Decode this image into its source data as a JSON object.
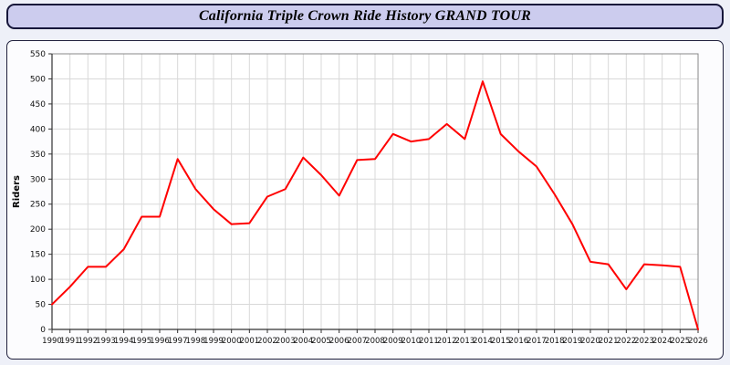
{
  "title": "California Triple Crown Ride History GRAND TOUR",
  "colors": {
    "line": "#ff0000",
    "titlebar_bg": "#ccccee",
    "page_bg": "#eef0f8",
    "grid": "#d9d9d9",
    "axis": "#333333"
  },
  "chart_data": {
    "type": "line",
    "title": "California Triple Crown Ride History GRAND TOUR",
    "xlabel": "",
    "ylabel": "Riders",
    "ylim": [
      0,
      550
    ],
    "ytick": 50,
    "grid": true,
    "legend": "none",
    "x": [
      1990,
      1991,
      1992,
      1993,
      1994,
      1995,
      1996,
      1997,
      1998,
      1999,
      2000,
      2001,
      2002,
      2003,
      2004,
      2005,
      2006,
      2007,
      2008,
      2009,
      2010,
      2011,
      2012,
      2013,
      2014,
      2015,
      2016,
      2017,
      2018,
      2019,
      2020,
      2021,
      2022,
      2023,
      2024,
      2025,
      2026
    ],
    "values": [
      50,
      85,
      125,
      125,
      160,
      225,
      225,
      340,
      280,
      240,
      210,
      212,
      265,
      280,
      343,
      308,
      267,
      338,
      340,
      390,
      375,
      380,
      410,
      380,
      495,
      390,
      355,
      325,
      270,
      210,
      135,
      130,
      80,
      130,
      128,
      125,
      0
    ]
  }
}
